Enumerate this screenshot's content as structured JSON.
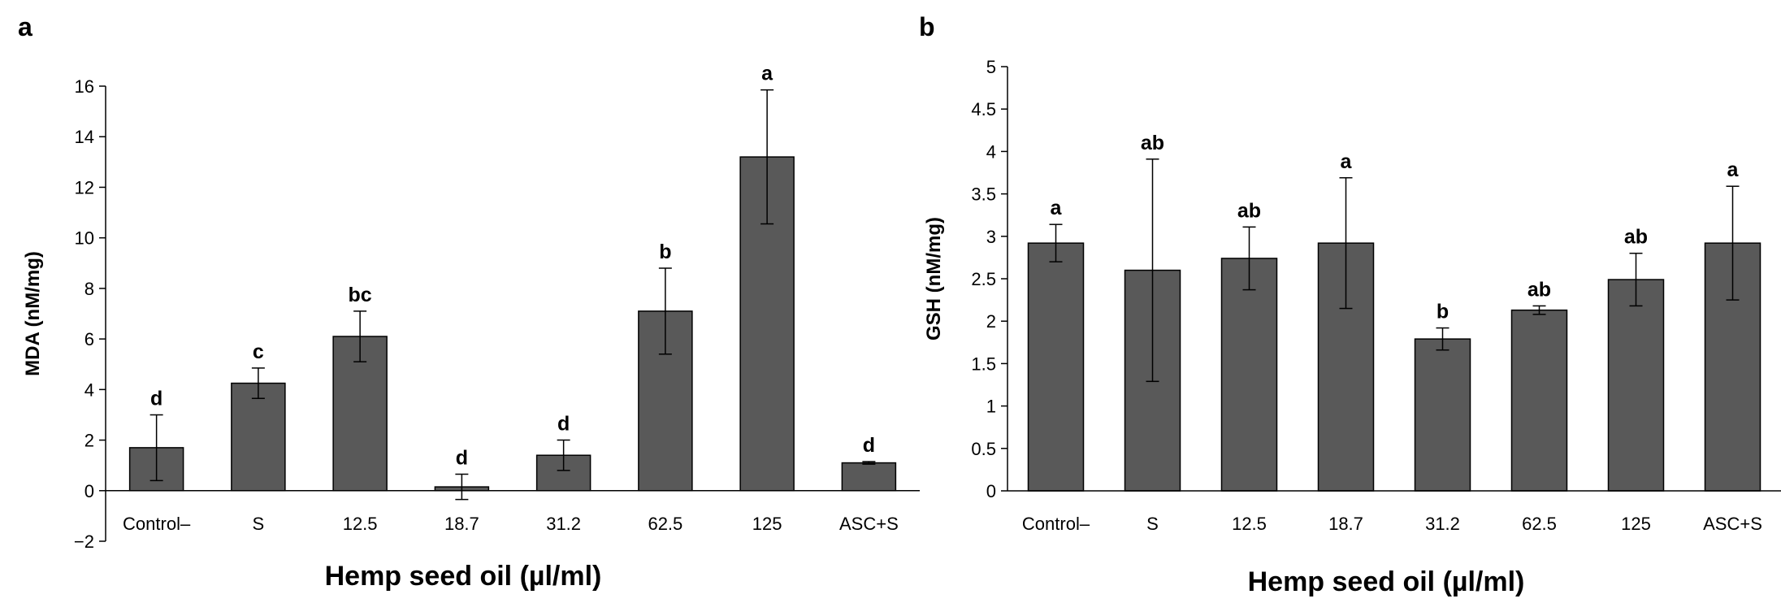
{
  "chart_data": [
    {
      "panel": "a",
      "type": "bar",
      "xlabel": "Hemp seed oil (µl/ml)",
      "ylabel": "MDA (nM/mg)",
      "ylim": [
        -2,
        16
      ],
      "yticks": [
        -2,
        0,
        2,
        4,
        6,
        8,
        10,
        12,
        14,
        16
      ],
      "ytick_labels": [
        "−2",
        "0",
        "2",
        "4",
        "6",
        "8",
        "10",
        "12",
        "14",
        "16"
      ],
      "categories": [
        "Control–",
        "S",
        "12.5",
        "18.7",
        "31.2",
        "62.5",
        "125",
        "ASC+S"
      ],
      "values": [
        1.7,
        4.25,
        6.1,
        0.15,
        1.4,
        7.1,
        13.2,
        1.1
      ],
      "errors": [
        1.3,
        0.6,
        1.0,
        0.5,
        0.6,
        1.7,
        2.65,
        0.05
      ],
      "significance": [
        "d",
        "c",
        "bc",
        "d",
        "d",
        "b",
        "a",
        "d"
      ],
      "bar_color": "#595959"
    },
    {
      "panel": "b",
      "type": "bar",
      "xlabel": "Hemp seed oil (µl/ml)",
      "ylabel": "GSH (nM/mg)",
      "ylim": [
        0,
        5
      ],
      "yticks": [
        0,
        0.5,
        1,
        1.5,
        2,
        2.5,
        3,
        3.5,
        4,
        4.5,
        5
      ],
      "ytick_labels": [
        "0",
        "0.5",
        "1",
        "1.5",
        "2",
        "2.5",
        "3",
        "3.5",
        "4",
        "4.5",
        "5"
      ],
      "categories": [
        "Control–",
        "S",
        "12.5",
        "18.7",
        "31.2",
        "62.5",
        "125",
        "ASC+S"
      ],
      "values": [
        2.92,
        2.6,
        2.74,
        2.92,
        1.79,
        2.13,
        2.49,
        2.92
      ],
      "errors": [
        0.22,
        1.31,
        0.37,
        0.77,
        0.13,
        0.05,
        0.31,
        0.67
      ],
      "significance": [
        "a",
        "ab",
        "ab",
        "a",
        "b",
        "ab",
        "ab",
        "a"
      ],
      "bar_color": "#595959"
    }
  ]
}
